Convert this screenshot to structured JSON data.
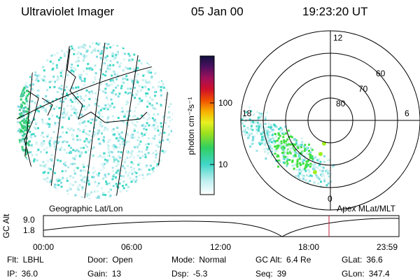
{
  "header": {
    "title": "Ultraviolet Imager",
    "date": "05 Jan 00",
    "time": "19:23:20 UT"
  },
  "colorbar": {
    "label": "photon cm⁻²s⁻¹",
    "ticks": [
      "100",
      "10"
    ]
  },
  "polar": {
    "mlt_labels": [
      "12",
      "18",
      "6",
      "0"
    ],
    "lat_labels": [
      "60",
      "70",
      "80"
    ]
  },
  "map_label": "Geographic Lat/Lon",
  "polar_label": "Apex MLat/MLT",
  "altitude": {
    "label": "GC Alt",
    "ticks": [
      "9.0",
      "1.8"
    ],
    "time_ticks": [
      "00:00",
      "06:00",
      "12:00",
      "18:00",
      "23:59"
    ]
  },
  "info": [
    [
      {
        "label": "Flt:",
        "value": "LBHL"
      },
      {
        "label": "Door:",
        "value": "Open"
      },
      {
        "label": "Mode:",
        "value": "Normal"
      },
      {
        "label": "GC Alt:",
        "value": "6.4 Re"
      },
      {
        "label": "GLat:",
        "value": "36.6"
      }
    ],
    [
      {
        "label": "IP:",
        "value": "36.0"
      },
      {
        "label": "Gain:",
        "value": "13"
      },
      {
        "label": "Dsp:",
        "value": "-5.3"
      },
      {
        "label": "Seq:",
        "value": "39"
      },
      {
        "label": "GLon:",
        "value": "347.4"
      }
    ]
  ]
}
